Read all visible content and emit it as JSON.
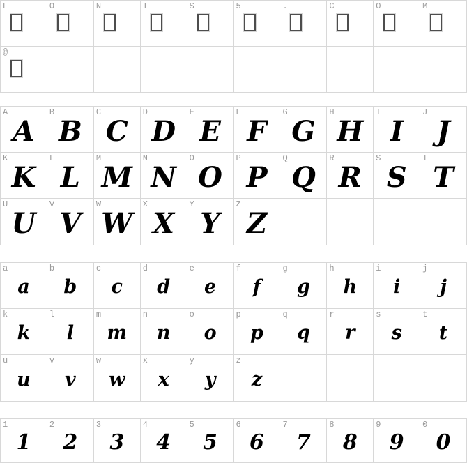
{
  "watermark_text": "FONTS5.COM",
  "colors": {
    "background": "#ffffff",
    "grid_line": "#d8d8d8",
    "cell_label": "#9b9b9b",
    "glyph": "#000000",
    "notdef_box_border": "#4d4d4d"
  },
  "sections": [
    {
      "name": "symbols",
      "rows": [
        [
          {
            "label": "F",
            "box": true
          },
          {
            "label": "O",
            "box": true
          },
          {
            "label": "N",
            "box": true
          },
          {
            "label": "T",
            "box": true
          },
          {
            "label": "S",
            "box": true
          },
          {
            "label": "5",
            "box": true
          },
          {
            "label": ".",
            "box": true
          },
          {
            "label": "C",
            "box": true
          },
          {
            "label": "O",
            "box": true
          },
          {
            "label": "M",
            "box": true
          }
        ],
        [
          {
            "label": "@",
            "box": true
          },
          {},
          {},
          {},
          {},
          {},
          {},
          {},
          {},
          {}
        ]
      ]
    },
    {
      "name": "uppercase",
      "rows": [
        [
          {
            "label": "A",
            "glyph": "A"
          },
          {
            "label": "B",
            "glyph": "B"
          },
          {
            "label": "C",
            "glyph": "C"
          },
          {
            "label": "D",
            "glyph": "D"
          },
          {
            "label": "E",
            "glyph": "E"
          },
          {
            "label": "F",
            "glyph": "F"
          },
          {
            "label": "G",
            "glyph": "G"
          },
          {
            "label": "H",
            "glyph": "H"
          },
          {
            "label": "I",
            "glyph": "I"
          },
          {
            "label": "J",
            "glyph": "J"
          }
        ],
        [
          {
            "label": "K",
            "glyph": "K"
          },
          {
            "label": "L",
            "glyph": "L"
          },
          {
            "label": "M",
            "glyph": "M"
          },
          {
            "label": "N",
            "glyph": "N"
          },
          {
            "label": "O",
            "glyph": "O"
          },
          {
            "label": "P",
            "glyph": "P"
          },
          {
            "label": "Q",
            "glyph": "Q"
          },
          {
            "label": "R",
            "glyph": "R"
          },
          {
            "label": "S",
            "glyph": "S"
          },
          {
            "label": "T",
            "glyph": "T"
          }
        ],
        [
          {
            "label": "U",
            "glyph": "U"
          },
          {
            "label": "V",
            "glyph": "V"
          },
          {
            "label": "W",
            "glyph": "W"
          },
          {
            "label": "X",
            "glyph": "X"
          },
          {
            "label": "Y",
            "glyph": "Y"
          },
          {
            "label": "Z",
            "glyph": "Z"
          },
          {},
          {},
          {},
          {}
        ]
      ]
    },
    {
      "name": "lowercase",
      "rows": [
        [
          {
            "label": "a",
            "glyph": "a"
          },
          {
            "label": "b",
            "glyph": "b"
          },
          {
            "label": "c",
            "glyph": "c"
          },
          {
            "label": "d",
            "glyph": "d"
          },
          {
            "label": "e",
            "glyph": "e"
          },
          {
            "label": "f",
            "glyph": "f"
          },
          {
            "label": "g",
            "glyph": "g"
          },
          {
            "label": "h",
            "glyph": "h"
          },
          {
            "label": "i",
            "glyph": "i"
          },
          {
            "label": "j",
            "glyph": "j"
          }
        ],
        [
          {
            "label": "k",
            "glyph": "k"
          },
          {
            "label": "l",
            "glyph": "l"
          },
          {
            "label": "m",
            "glyph": "m"
          },
          {
            "label": "n",
            "glyph": "n"
          },
          {
            "label": "o",
            "glyph": "o"
          },
          {
            "label": "p",
            "glyph": "p"
          },
          {
            "label": "q",
            "glyph": "q"
          },
          {
            "label": "r",
            "glyph": "r"
          },
          {
            "label": "s",
            "glyph": "s"
          },
          {
            "label": "t",
            "glyph": "t"
          }
        ],
        [
          {
            "label": "u",
            "glyph": "u"
          },
          {
            "label": "v",
            "glyph": "v"
          },
          {
            "label": "w",
            "glyph": "w"
          },
          {
            "label": "x",
            "glyph": "x"
          },
          {
            "label": "y",
            "glyph": "y"
          },
          {
            "label": "z",
            "glyph": "z"
          },
          {},
          {},
          {},
          {}
        ]
      ]
    },
    {
      "name": "digits",
      "rows": [
        [
          {
            "label": "1",
            "glyph": "1"
          },
          {
            "label": "2",
            "glyph": "2"
          },
          {
            "label": "3",
            "glyph": "3"
          },
          {
            "label": "4",
            "glyph": "4"
          },
          {
            "label": "5",
            "glyph": "5"
          },
          {
            "label": "6",
            "glyph": "6"
          },
          {
            "label": "7",
            "glyph": "7"
          },
          {
            "label": "8",
            "glyph": "8"
          },
          {
            "label": "9",
            "glyph": "9"
          },
          {
            "label": "0",
            "glyph": "0"
          }
        ]
      ]
    }
  ]
}
